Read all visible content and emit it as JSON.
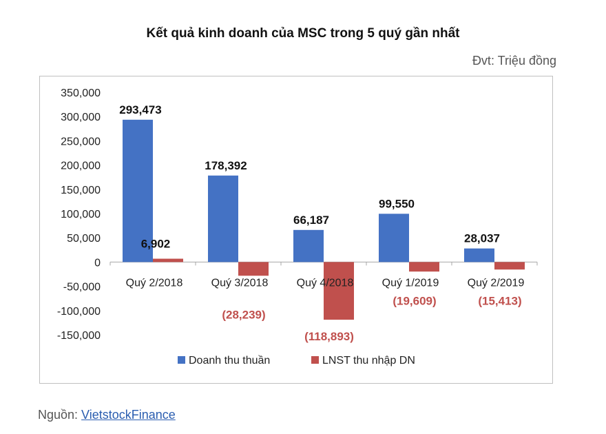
{
  "title": "Kết quả kinh doanh của MSC trong 5 quý gần nhất",
  "unit_label": "Đvt: Triệu đồng",
  "source": {
    "prefix": "Nguồn: ",
    "link_text": "VietstockFinance"
  },
  "colors": {
    "revenue": "#4472C4",
    "profit": "#C0504D",
    "negative_label": "#C0504D",
    "axis": "#a6a6a6"
  },
  "chart_data": {
    "type": "bar",
    "title": "Kết quả kinh doanh của MSC trong 5 quý gần nhất",
    "categories": [
      "Quý 2/2018",
      "Quý 3/2018",
      "Quý 4/2018",
      "Quý 1/2019",
      "Quý 2/2019"
    ],
    "series": [
      {
        "name": "Doanh thu thuần",
        "values": [
          293473,
          178392,
          66187,
          99550,
          28037
        ],
        "labels": [
          "293,473",
          "178,392",
          "66,187",
          "99,550",
          "28,037"
        ]
      },
      {
        "name": "LNST thu nhập DN",
        "values": [
          6902,
          -28239,
          -118893,
          -19609,
          -15413
        ],
        "labels": [
          "6,902",
          "(28,239)",
          "(118,893)",
          "(19,609)",
          "(15,413)"
        ]
      }
    ],
    "ylim": [
      -150000,
      350000
    ],
    "yticks": [
      350000,
      300000,
      250000,
      200000,
      150000,
      100000,
      50000,
      0,
      -50000,
      -100000,
      -150000
    ],
    "ytick_labels": [
      "350,000",
      "300,000",
      "250,000",
      "200,000",
      "150,000",
      "100,000",
      "50,000",
      "0",
      "-50,000",
      "-100,000",
      "-150,000"
    ],
    "grid": false,
    "legend": "bottom"
  }
}
